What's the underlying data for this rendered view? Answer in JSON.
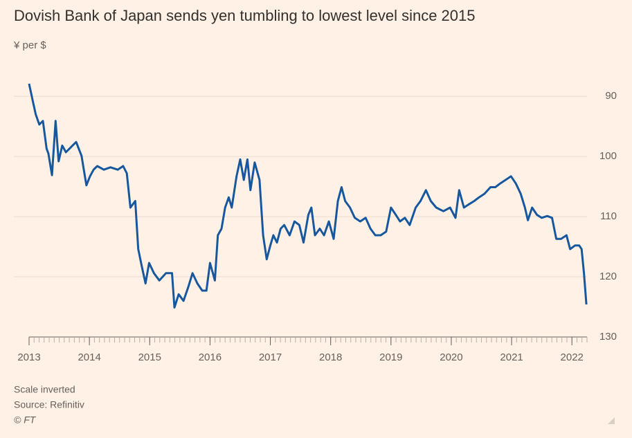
{
  "chart_data": {
    "type": "line",
    "title": "Dovish Bank of Japan sends yen tumbling to lowest level since 2015",
    "subtitle": "¥ per $",
    "notes": [
      "Scale inverted",
      "Source: Refinitiv"
    ],
    "credit": "© FT",
    "series": [
      {
        "name": "¥ per $",
        "color": "#17579e",
        "x": [
          2013.0,
          2013.06,
          2013.11,
          2013.17,
          2013.23,
          2013.29,
          2013.32,
          2013.38,
          2013.44,
          2013.49,
          2013.55,
          2013.61,
          2013.67,
          2013.72,
          2013.78,
          2013.87,
          2013.95,
          2014.01,
          2014.07,
          2014.13,
          2014.24,
          2014.35,
          2014.47,
          2014.56,
          2014.62,
          2014.68,
          2014.76,
          2014.81,
          2014.87,
          2014.93,
          2014.99,
          2015.07,
          2015.16,
          2015.27,
          2015.37,
          2015.41,
          2015.48,
          2015.56,
          2015.64,
          2015.71,
          2015.79,
          2015.87,
          2015.94,
          2016.0,
          2016.08,
          2016.13,
          2016.19,
          2016.25,
          2016.31,
          2016.36,
          2016.44,
          2016.5,
          2016.56,
          2016.62,
          2016.67,
          2016.74,
          2016.82,
          2016.88,
          2016.94,
          2017.0,
          2017.05,
          2017.11,
          2017.17,
          2017.23,
          2017.32,
          2017.4,
          2017.48,
          2017.55,
          2017.63,
          2017.68,
          2017.74,
          2017.82,
          2017.89,
          2017.97,
          2018.05,
          2018.12,
          2018.18,
          2018.24,
          2018.32,
          2018.4,
          2018.49,
          2018.58,
          2018.66,
          2018.74,
          2018.83,
          2018.92,
          2019.0,
          2019.08,
          2019.15,
          2019.23,
          2019.31,
          2019.41,
          2019.49,
          2019.58,
          2019.66,
          2019.75,
          2019.87,
          2019.98,
          2020.07,
          2020.13,
          2020.21,
          2020.3,
          2020.38,
          2020.46,
          2020.55,
          2020.65,
          2020.73,
          2020.81,
          2020.9,
          2020.99,
          2021.07,
          2021.15,
          2021.22,
          2021.27,
          2021.34,
          2021.42,
          2021.5,
          2021.59,
          2021.67,
          2021.74,
          2021.82,
          2021.91,
          2021.97,
          2022.05,
          2022.12,
          2022.16,
          2022.2,
          2022.24
        ],
        "values": [
          87.9,
          90.7,
          93,
          94.7,
          94.1,
          98.7,
          99.5,
          103.1,
          94.1,
          100.8,
          98.2,
          99.3,
          98.7,
          98.2,
          97.6,
          99.9,
          104.8,
          103.3,
          102.2,
          101.6,
          102.2,
          101.8,
          102.2,
          101.6,
          102.8,
          108.5,
          107.4,
          115.4,
          118.3,
          121.1,
          117.7,
          119.4,
          120.6,
          119.4,
          119.4,
          125.1,
          122.9,
          124.0,
          121.7,
          119.4,
          121.1,
          122.3,
          122.3,
          117.7,
          120.6,
          113.1,
          112.0,
          108.5,
          106.8,
          108.5,
          103.3,
          100.5,
          103.9,
          100.5,
          105.6,
          101.0,
          103.9,
          113.1,
          117.1,
          114.8,
          113.1,
          114.3,
          112.0,
          111.4,
          113.1,
          110.8,
          111.4,
          114.3,
          109.7,
          108.5,
          113.1,
          112.0,
          113.1,
          110.8,
          113.7,
          107.4,
          105.1,
          107.4,
          108.5,
          110.2,
          110.8,
          110.2,
          112.0,
          113.1,
          113.1,
          112.5,
          108.5,
          109.7,
          110.8,
          110.2,
          111.4,
          108.5,
          107.4,
          105.6,
          107.4,
          108.5,
          109.1,
          108.5,
          110.2,
          105.6,
          108.5,
          107.9,
          107.4,
          106.8,
          106.2,
          105.1,
          105.1,
          104.5,
          103.9,
          103.3,
          104.5,
          106.2,
          108.5,
          110.6,
          108.5,
          109.7,
          110.2,
          109.9,
          110.2,
          113.7,
          113.7,
          113.1,
          115.4,
          114.8,
          114.8,
          115.4,
          119.4,
          124.6
        ]
      }
    ],
    "xlim": [
      2013,
      2022.25
    ],
    "xticks": [
      2013,
      2014,
      2015,
      2016,
      2017,
      2018,
      2019,
      2020,
      2021,
      2022
    ],
    "ylim": [
      85.5,
      130
    ],
    "yticks": [
      90,
      100,
      110,
      120,
      130
    ],
    "y_inverted": true,
    "grid": true
  }
}
